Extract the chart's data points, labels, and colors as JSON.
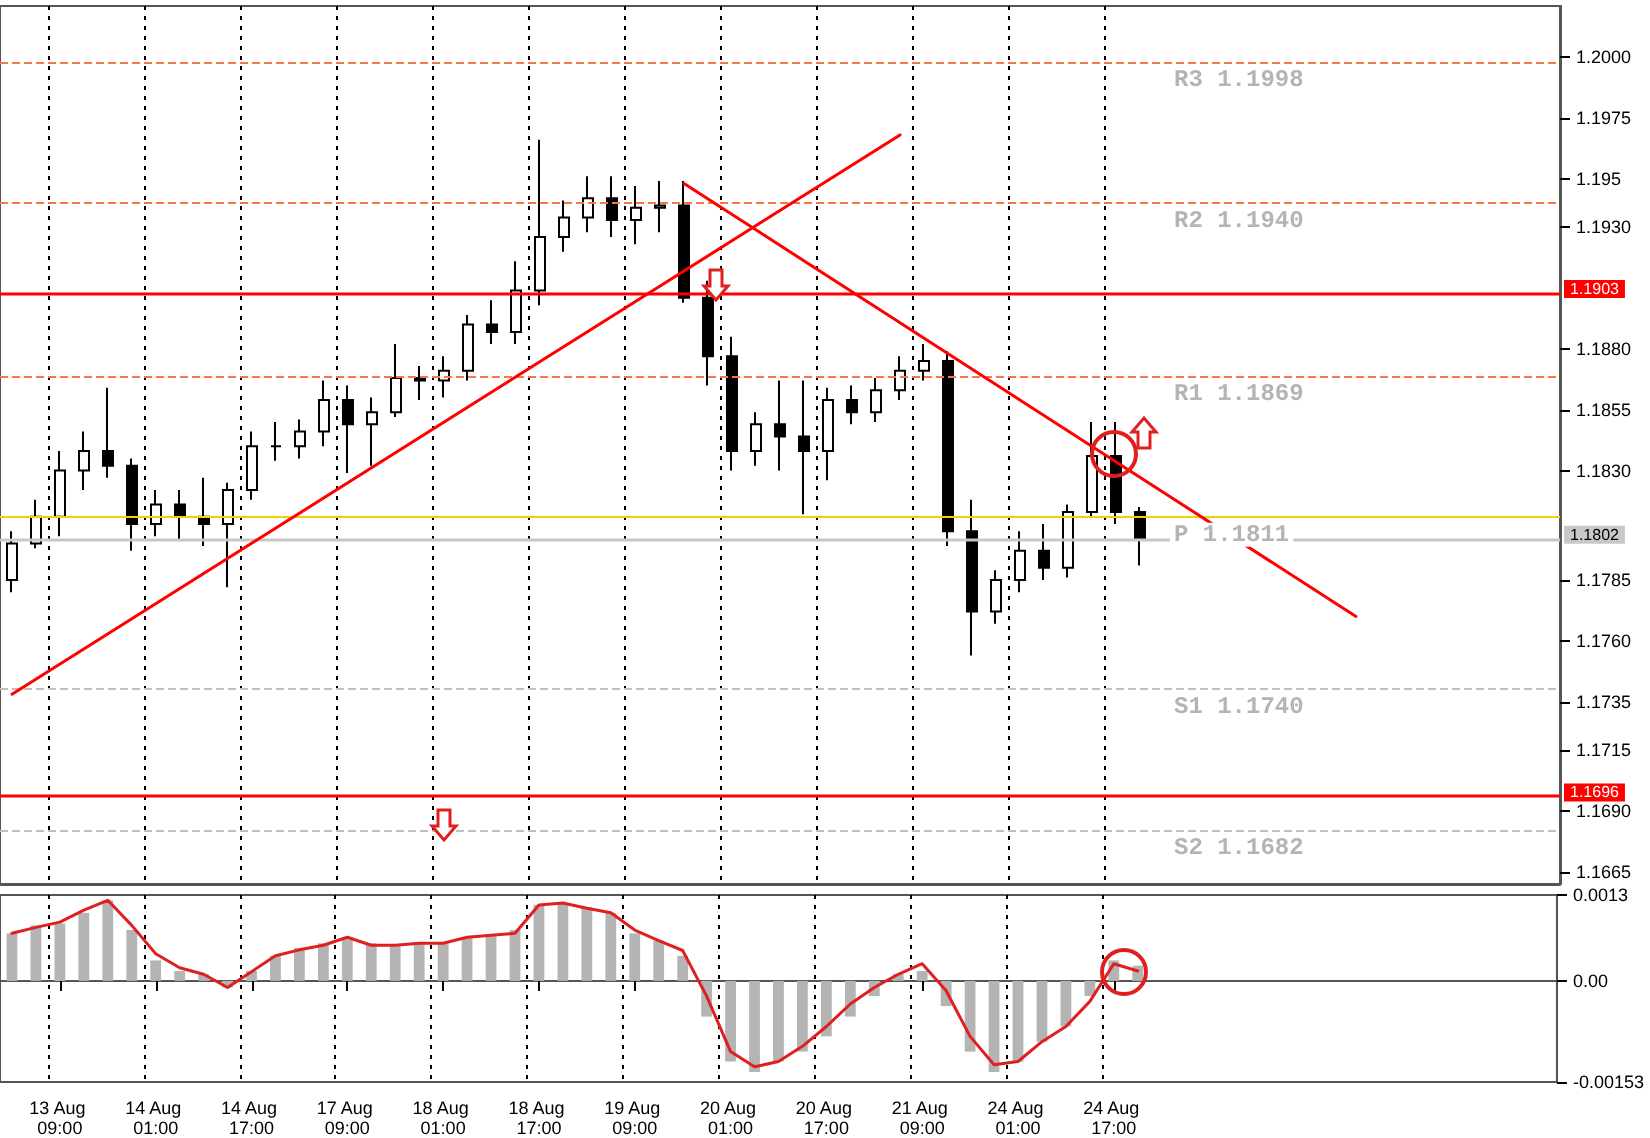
{
  "chart_data": [
    {
      "type": "candlestick",
      "color": "#000000",
      "categories": [
        null,
        null,
        "13 Aug 09:00",
        null,
        null,
        null,
        "14 Aug 01:00",
        null,
        null,
        null,
        "14 Aug 17:00",
        null,
        null,
        null,
        "17 Aug 09:00",
        null,
        null,
        null,
        "18 Aug 01:00",
        null,
        null,
        null,
        "18 Aug 17:00",
        null,
        null,
        null,
        "19 Aug 09:00",
        null,
        null,
        null,
        "20 Aug 01:00",
        null,
        null,
        null,
        "20 Aug 17:00",
        null,
        null,
        null,
        "21 Aug 09:00",
        null,
        null,
        null,
        "24 Aug 01:00",
        null,
        null,
        null,
        "24 Aug 17:00",
        null,
        null,
        null,
        null,
        null,
        null,
        null,
        null,
        null,
        null,
        null,
        null,
        null,
        null,
        null,
        null,
        null,
        null
      ],
      "ohlc": [
        [
          1.1785,
          1.1805,
          1.178,
          1.18
        ],
        [
          1.18,
          1.1818,
          1.1798,
          1.1811
        ],
        [
          1.1811,
          1.1838,
          1.1803,
          1.183
        ],
        [
          1.183,
          1.1846,
          1.1822,
          1.1838
        ],
        [
          1.1838,
          1.1864,
          1.1827,
          1.1832
        ],
        [
          1.1832,
          1.1835,
          1.1797,
          1.1808
        ],
        [
          1.1808,
          1.1822,
          1.1803,
          1.1816
        ],
        [
          1.1816,
          1.1822,
          1.1801,
          1.1811
        ],
        [
          1.1811,
          1.1827,
          1.1799,
          1.1808
        ],
        [
          1.1808,
          1.1825,
          1.1782,
          1.1822
        ],
        [
          1.1822,
          1.1846,
          1.1818,
          1.184
        ],
        [
          1.184,
          1.185,
          1.1834,
          1.184
        ],
        [
          1.184,
          1.1851,
          1.1835,
          1.1846
        ],
        [
          1.1846,
          1.1867,
          1.184,
          1.1859
        ],
        [
          1.1859,
          1.1865,
          1.1829,
          1.1849
        ],
        [
          1.1849,
          1.186,
          1.1832,
          1.1854
        ],
        [
          1.1854,
          1.1882,
          1.1852,
          1.1868
        ],
        [
          1.1868,
          1.1873,
          1.1859,
          1.1867
        ],
        [
          1.1867,
          1.1877,
          1.186,
          1.1871
        ],
        [
          1.1871,
          1.1894,
          1.1867,
          1.189
        ],
        [
          1.189,
          1.19,
          1.1882,
          1.1887
        ],
        [
          1.1887,
          1.1916,
          1.1882,
          1.1904
        ],
        [
          1.1904,
          1.1966,
          1.1898,
          1.1926
        ],
        [
          1.1926,
          1.1941,
          1.192,
          1.1934
        ],
        [
          1.1934,
          1.1951,
          1.1928,
          1.1942
        ],
        [
          1.1942,
          1.1951,
          1.1926,
          1.1933
        ],
        [
          1.1933,
          1.1947,
          1.1923,
          1.1938
        ],
        [
          1.1938,
          1.1949,
          1.1928,
          1.1939
        ],
        [
          1.1939,
          1.1949,
          1.1899,
          1.1901
        ],
        [
          1.1901,
          1.1908,
          1.1865,
          1.1877
        ],
        [
          1.1877,
          1.1885,
          1.183,
          1.1838
        ],
        [
          1.1838,
          1.1854,
          1.1832,
          1.1849
        ],
        [
          1.1849,
          1.1867,
          1.183,
          1.1844
        ],
        [
          1.1844,
          1.1867,
          1.1812,
          1.1838
        ],
        [
          1.1838,
          1.1864,
          1.1826,
          1.1859
        ],
        [
          1.1859,
          1.1865,
          1.1849,
          1.1854
        ],
        [
          1.1854,
          1.1868,
          1.185,
          1.1863
        ],
        [
          1.1863,
          1.1877,
          1.1859,
          1.1871
        ],
        [
          1.1871,
          1.1882,
          1.1867,
          1.1875
        ],
        [
          1.1875,
          1.1879,
          1.1799,
          1.1805
        ],
        [
          1.1805,
          1.1818,
          1.1754,
          1.1772
        ],
        [
          1.1772,
          1.1789,
          1.1767,
          1.1785
        ],
        [
          1.1785,
          1.1805,
          1.178,
          1.1797
        ],
        [
          1.1797,
          1.1808,
          1.1785,
          1.179
        ],
        [
          1.179,
          1.1816,
          1.1786,
          1.1813
        ],
        [
          1.1813,
          1.185,
          1.1811,
          1.1836
        ],
        [
          1.1836,
          1.185,
          1.1808,
          1.1813
        ],
        [
          1.1813,
          1.1815,
          1.1791,
          1.1802
        ],
        null,
        null,
        null,
        null,
        null,
        null,
        null,
        null,
        null,
        null,
        null,
        null,
        null,
        null,
        null,
        null,
        null
      ],
      "series": [
        {
          "type": "line",
          "color": "#ff0000",
          "values": [
            1.1738,
            null,
            null,
            null,
            null,
            null,
            null,
            null,
            null,
            null,
            null,
            null,
            null,
            null,
            null,
            null,
            null,
            null,
            null,
            null,
            null,
            null,
            null,
            null,
            null,
            null,
            null,
            null,
            null,
            null,
            null,
            null,
            null,
            null,
            null,
            null,
            null,
            1.1968,
            null,
            null,
            null,
            null,
            null,
            null,
            null,
            null,
            null,
            null,
            null,
            null,
            null,
            null,
            null,
            null,
            null,
            null,
            null,
            null,
            null,
            null,
            null,
            null,
            null,
            null,
            null
          ]
        },
        {
          "type": "line",
          "color": "#ff0000",
          "values": [
            null,
            null,
            null,
            null,
            null,
            null,
            null,
            null,
            null,
            null,
            null,
            null,
            null,
            null,
            null,
            null,
            null,
            null,
            null,
            null,
            null,
            null,
            null,
            null,
            null,
            null,
            null,
            null,
            1.1948,
            null,
            null,
            null,
            null,
            null,
            null,
            null,
            null,
            null,
            null,
            null,
            null,
            null,
            null,
            null,
            null,
            null,
            null,
            null,
            null,
            null,
            null,
            null,
            null,
            null,
            null,
            null,
            1.177,
            null,
            null,
            null,
            null,
            null,
            null,
            null,
            null
          ]
        }
      ],
      "ylim": [
        1.166,
        1.2021
      ],
      "yticks": [
        {
          "value": 1.2,
          "label": "1.2000"
        },
        1.1975,
        1.195,
        {
          "value": 1.193,
          "label": "1.1930"
        },
        {
          "value": 1.188,
          "label": "1.1880"
        },
        1.1855,
        {
          "value": 1.183,
          "label": "1.1830"
        },
        1.1785,
        {
          "value": 1.176,
          "label": "1.1760"
        },
        1.1735,
        1.1715,
        {
          "value": 1.169,
          "label": "1.1690"
        },
        1.1665
      ],
      "ref_lines": [
        {
          "axis": "y",
          "value": 1.1903,
          "label": "1.1903",
          "color": "#ff0000"
        },
        {
          "axis": "y",
          "value": 1.1696,
          "label": "1.1696",
          "color": "#ff0000"
        },
        {
          "axis": "y",
          "value": 1.1802,
          "label": "1.1802",
          "color": "#c8c8c8"
        },
        {
          "axis": "y",
          "value": 1.1998,
          "color": "#f4794a",
          "line_style": "dashed"
        },
        {
          "axis": "y",
          "value": 1.194,
          "color": "#f4794a",
          "line_style": "dashed"
        },
        {
          "axis": "y",
          "value": 1.1869,
          "color": "#f4794a",
          "line_style": "dashed"
        },
        {
          "axis": "y",
          "value": 1.1811,
          "color": "#f5d000"
        },
        {
          "axis": "y",
          "value": 1.174,
          "color": "#c8bcbc",
          "line_style": "dashed"
        },
        {
          "axis": "y",
          "value": 1.1682,
          "color": "#c8bcbc",
          "line_style": "dashed"
        }
      ],
      "annotations": [
        "R3 1.1998",
        "R2 1.1940",
        "R1 1.1869",
        "P 1.1811",
        "S1 1.1740",
        "S2 1.1682"
      ],
      "grid": "x",
      "tick_labels": "y",
      "marker": "none"
    },
    {
      "type": "bar",
      "categories": [
        null,
        null,
        "13 Aug 09:00",
        null,
        null,
        null,
        "14 Aug 01:00",
        null,
        null,
        null,
        "14 Aug 17:00",
        null,
        null,
        null,
        "17 Aug 09:00",
        null,
        null,
        null,
        "18 Aug 01:00",
        null,
        null,
        null,
        "18 Aug 17:00",
        null,
        null,
        null,
        "19 Aug 09:00",
        null,
        null,
        null,
        "20 Aug 01:00",
        null,
        null,
        null,
        "20 Aug 17:00",
        null,
        null,
        null,
        "21 Aug 09:00",
        null,
        null,
        null,
        "24 Aug 01:00",
        null,
        null,
        null,
        "24 Aug 17:00",
        null,
        null,
        null,
        null,
        null,
        null,
        null,
        null,
        null,
        null,
        null,
        null,
        null,
        null,
        null,
        null,
        null,
        null
      ],
      "series": [
        {
          "type": "bar",
          "color": "#b4b4b4",
          "values": [
            0.00072,
            0.00084,
            0.00087,
            0.00103,
            0.00122,
            0.00077,
            0.00031,
            0.00015,
            0.0001,
            -0.0001,
            0.00015,
            0.00038,
            0.0005,
            0.00057,
            0.00066,
            0.00057,
            0.00054,
            0.00057,
            0.00057,
            0.00066,
            0.00069,
            0.00077,
            0.00115,
            0.00118,
            0.00112,
            0.00103,
            0.00072,
            0.00061,
            0.00038,
            -0.00054,
            -0.00122,
            -0.00138,
            -0.00122,
            -0.00107,
            -0.00084,
            -0.00054,
            -0.00023,
            0.0001,
            0.00015,
            -0.00038,
            -0.00107,
            -0.00138,
            -0.00122,
            -0.00092,
            -0.00069,
            -0.00023,
            0.00031,
            0.00023,
            null,
            null,
            null,
            null,
            null,
            null,
            null,
            null,
            null,
            null,
            null,
            null,
            null,
            null,
            null,
            null,
            null
          ]
        },
        {
          "type": "line",
          "color": "#e02020",
          "values": [
            0.00072,
            0.00081,
            0.00089,
            0.00107,
            0.00122,
            0.00084,
            0.00041,
            0.0002,
            0.0001,
            -0.0001,
            0.00014,
            0.00038,
            0.00047,
            0.00054,
            0.00066,
            0.00054,
            0.00054,
            0.00057,
            0.00057,
            0.00066,
            0.00069,
            0.00072,
            0.00115,
            0.00118,
            0.0011,
            0.00103,
            0.00077,
            0.00061,
            0.00046,
            -0.00023,
            -0.00107,
            -0.0013,
            -0.00122,
            -0.00099,
            -0.00069,
            -0.00035,
            -0.0001,
            0.0001,
            0.00026,
            -0.00015,
            -0.00084,
            -0.00127,
            -0.00122,
            -0.00092,
            -0.00069,
            -0.00031,
            0.00026,
            0.00015,
            null,
            null,
            null,
            null,
            null,
            null,
            null,
            null,
            null,
            null,
            null,
            null,
            null,
            null,
            null,
            null,
            null
          ]
        }
      ],
      "ylim": [
        -0.00153,
        0.0013
      ],
      "yticks": [
        0.0013,
        {
          "value": 0,
          "label": "0.00"
        },
        -0.00153
      ],
      "grid": "x",
      "marker": "none"
    }
  ]
}
